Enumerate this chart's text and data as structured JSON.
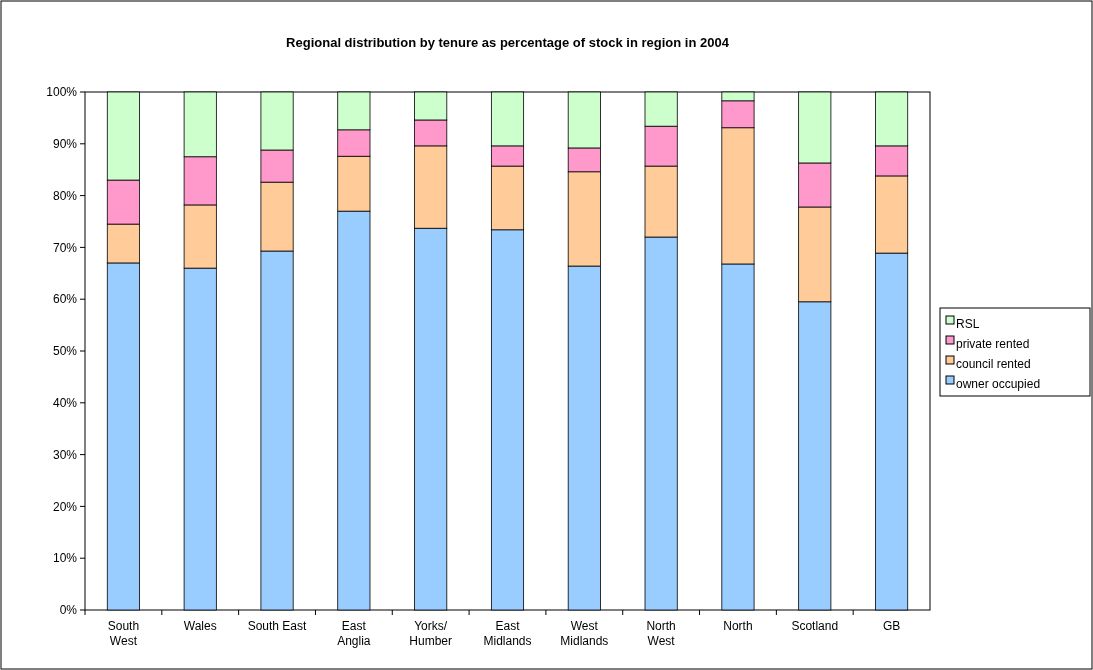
{
  "chart_data": {
    "type": "bar",
    "stacked": true,
    "title": "Regional distribution by tenure as percentage of stock in region in 2004",
    "categories": [
      "South\nWest",
      "Wales",
      "South East",
      "East\nAnglia",
      "Yorks/\nHumber",
      "East\nMidlands",
      "West\nMidlands",
      "North\nWest",
      "North",
      "Scotland",
      "GB"
    ],
    "series": [
      {
        "name": "owner occupied",
        "color": "#99ccff",
        "values": [
          67,
          66,
          69.3,
          77,
          73.7,
          73.4,
          66.4,
          72,
          66.8,
          59.5,
          68.9
        ]
      },
      {
        "name": "council rented",
        "color": "#ffcc99",
        "values": [
          7.5,
          12.2,
          13.3,
          10.6,
          15.9,
          12.3,
          18.2,
          13.7,
          26.3,
          18.3,
          14.9
        ]
      },
      {
        "name": "private rented",
        "color": "#ff99cc",
        "values": [
          8.5,
          9.3,
          6.2,
          5.1,
          5,
          3.9,
          4.6,
          7.7,
          5.2,
          8.5,
          5.8
        ]
      },
      {
        "name": "RSL",
        "color": "#ccffcc",
        "values": [
          17,
          12.5,
          11.2,
          7.3,
          5.4,
          10.4,
          10.8,
          6.6,
          1.7,
          13.7,
          10.4
        ]
      }
    ],
    "ylim": [
      0,
      100
    ],
    "yticks": [
      {
        "value": 0,
        "label": "0%"
      },
      {
        "value": 10,
        "label": "10%"
      },
      {
        "value": 20,
        "label": "20%"
      },
      {
        "value": 30,
        "label": "30%"
      },
      {
        "value": 40,
        "label": "40%"
      },
      {
        "value": 50,
        "label": "50%"
      },
      {
        "value": 60,
        "label": "60%"
      },
      {
        "value": 70,
        "label": "70%"
      },
      {
        "value": 80,
        "label": "80%"
      },
      {
        "value": 90,
        "label": "90%"
      },
      {
        "value": 100,
        "label": "100%"
      }
    ],
    "grid": false,
    "legend": "right"
  }
}
